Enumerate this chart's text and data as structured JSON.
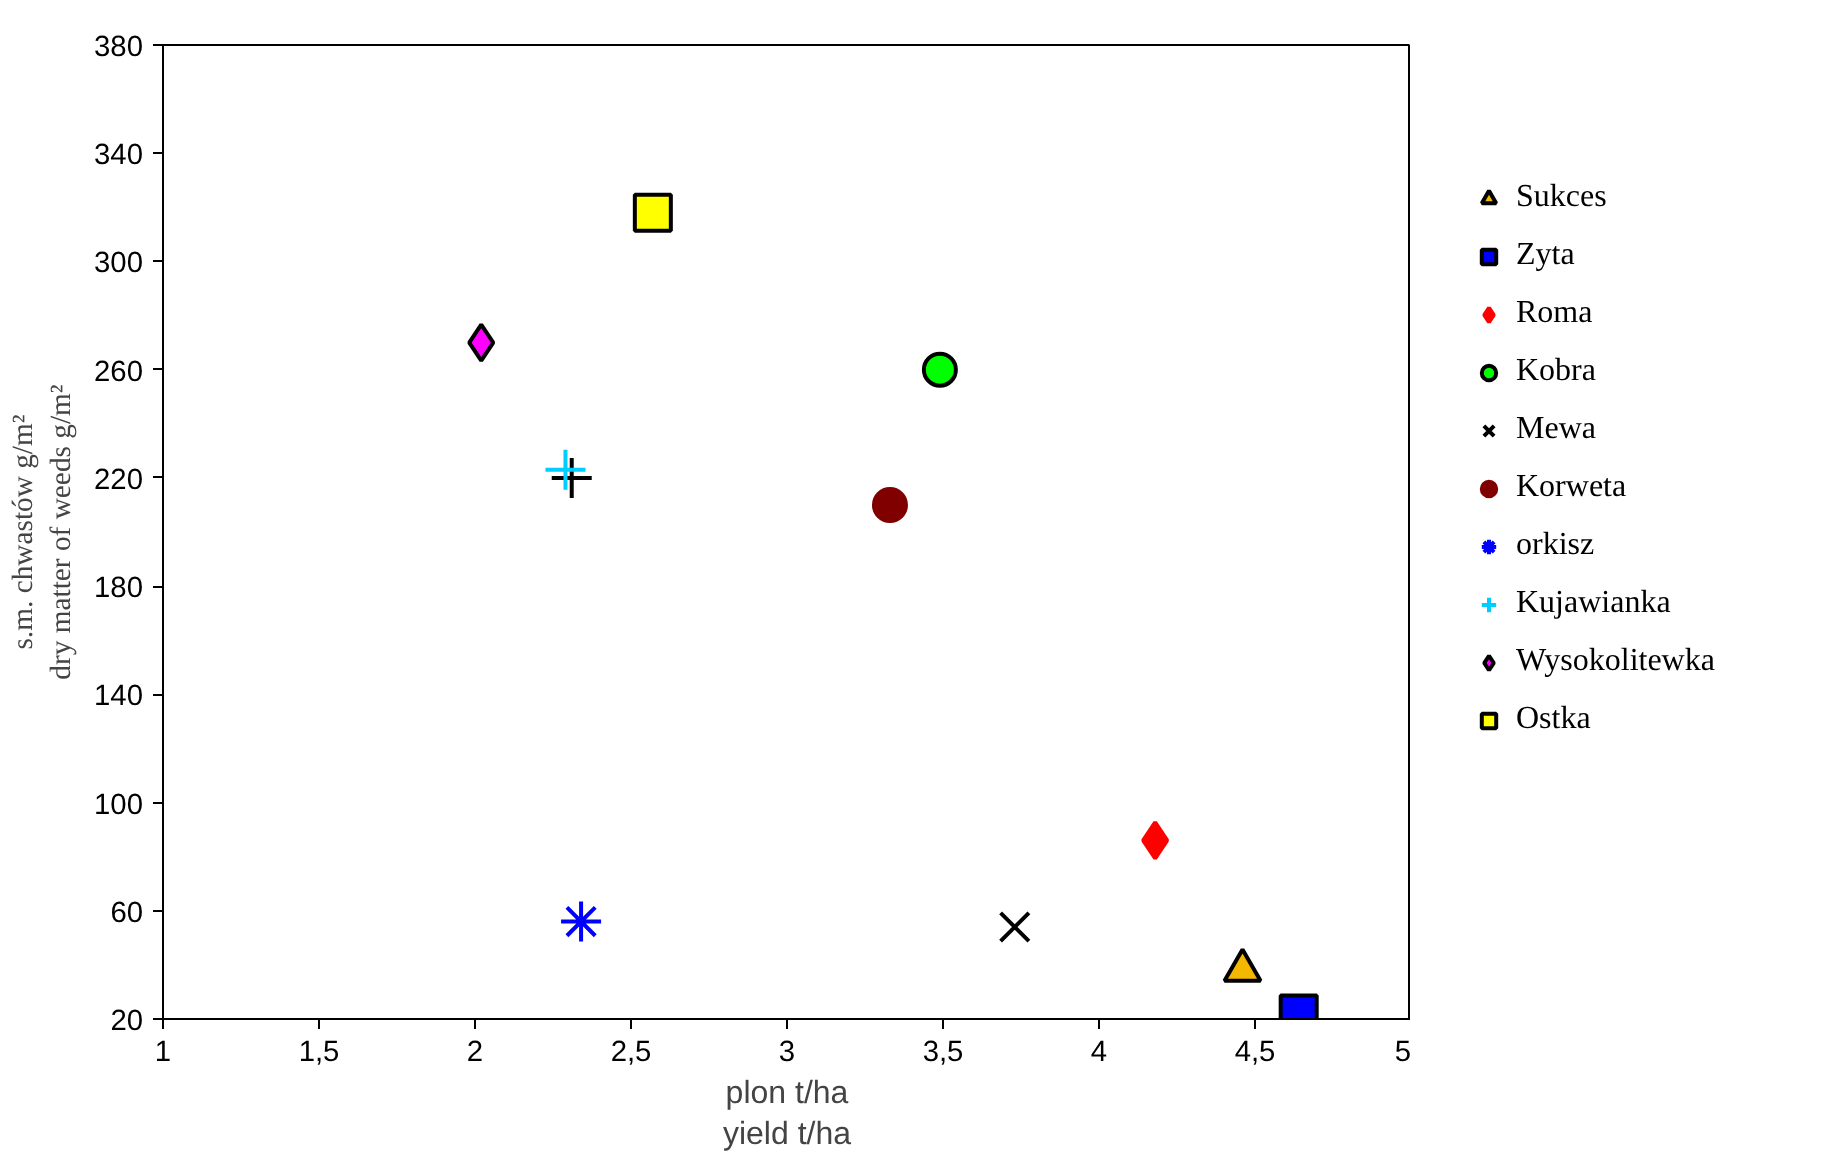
{
  "chart_data": {
    "type": "scatter",
    "xlabel": "plon t/ha\nyield t/ha",
    "ylabel": "s.m. chwastów g/m²\ndry matter of weeds g/m²",
    "xlim": [
      1,
      5
    ],
    "ylim": [
      20,
      380
    ],
    "xticks": [
      1,
      {
        "value": 1.5,
        "label": "1,5"
      },
      2,
      {
        "value": 2.5,
        "label": "2,5"
      },
      3,
      {
        "value": 3.5,
        "label": "3,5"
      },
      4,
      {
        "value": 4.5,
        "label": "4,5"
      },
      5
    ],
    "yticks": [
      20,
      60,
      100,
      140,
      180,
      220,
      260,
      300,
      340,
      380
    ],
    "grid": false,
    "legend": "right",
    "series": [
      {
        "name": "Sukces",
        "color": "#f5b800",
        "marker": "triangle",
        "x": [
          4.46
        ],
        "values": [
          38
        ]
      },
      {
        "name": "Zyta",
        "color": "#0000ff",
        "marker": "square",
        "x": [
          4.64
        ],
        "values": [
          22
        ]
      },
      {
        "name": "Roma",
        "color": "#ff0000",
        "marker": "diamond",
        "x": [
          4.18
        ],
        "values": [
          86
        ]
      },
      {
        "name": "Kobra",
        "color": "#00ff00",
        "marker": "circle",
        "x": [
          3.49
        ],
        "values": [
          260
        ]
      },
      {
        "name": "Mewa",
        "color": "#000000",
        "marker": "x",
        "x": [
          3.73
        ],
        "values": [
          54
        ]
      },
      {
        "name": "Korweta",
        "color": "#800000",
        "marker": "circle",
        "x": [
          3.33
        ],
        "values": [
          210
        ]
      },
      {
        "name": "orkisz",
        "color": "#0000ff",
        "x": [
          2.34
        ],
        "values": [
          56
        ]
      },
      {
        "color": "#000000",
        "marker": "cross",
        "x": [
          2.31
        ],
        "values": [
          220
        ]
      },
      {
        "name": "Kujawianka",
        "color": "#00ccff",
        "marker": "cross",
        "x": [
          2.29
        ],
        "values": [
          223
        ]
      },
      {
        "name": "Wysokolitewka",
        "color": "#ff00ff",
        "marker": "diamond",
        "x": [
          2.02
        ],
        "values": [
          270
        ]
      },
      {
        "name": "Ostka",
        "color": "#ffff00",
        "marker": "square",
        "x": [
          2.57
        ],
        "values": [
          318
        ]
      }
    ]
  }
}
